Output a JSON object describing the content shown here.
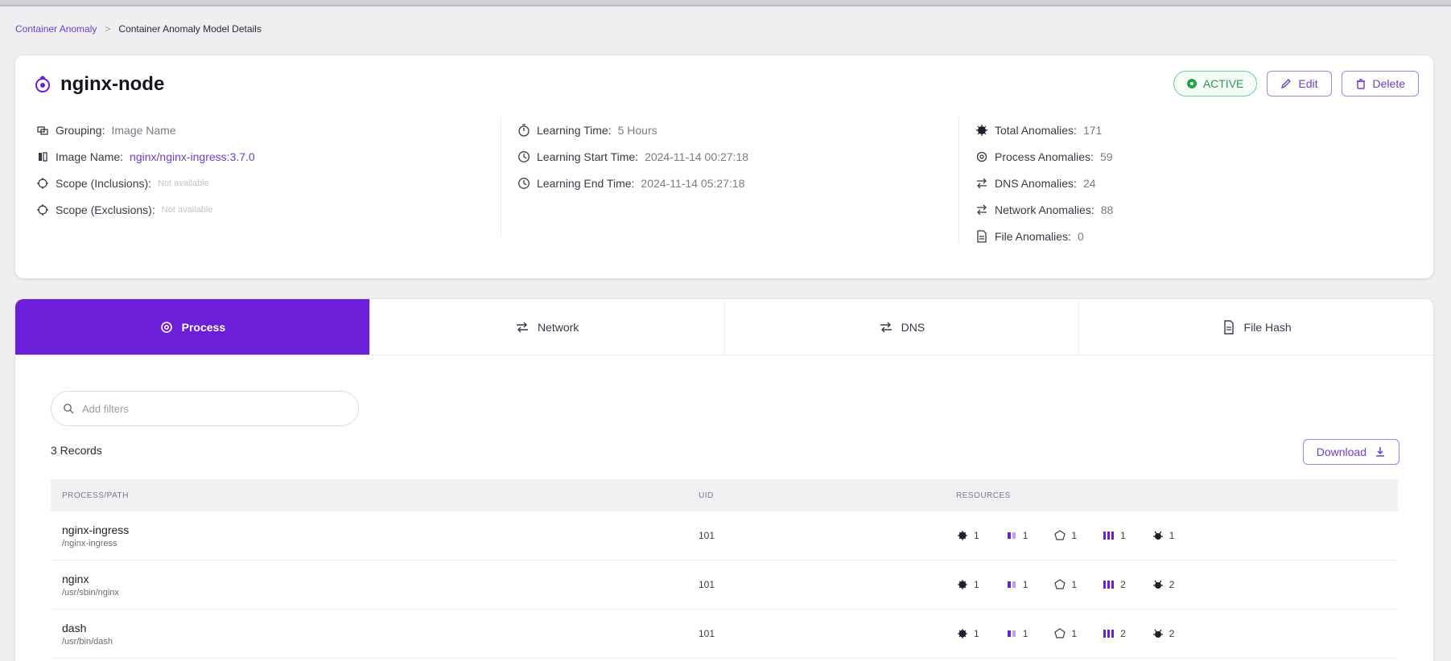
{
  "breadcrumb": {
    "parent": "Container Anomaly",
    "separator": ">",
    "current": "Container Anomaly Model Details"
  },
  "header": {
    "title": "nginx-node",
    "status": "ACTIVE",
    "edit_label": "Edit",
    "delete_label": "Delete",
    "colors": {
      "accent": "#6b1fd8",
      "active": "#27a24b"
    }
  },
  "details": {
    "grouping": {
      "label": "Grouping:",
      "value": "Image Name"
    },
    "image_name": {
      "label": "Image Name:",
      "value": "nginx/nginx-ingress:3.7.0"
    },
    "scope_inclusions": {
      "label": "Scope (Inclusions):",
      "value": "Not available"
    },
    "scope_exclusions": {
      "label": "Scope (Exclusions):",
      "value": "Not available"
    },
    "learning_time": {
      "label": "Learning Time:",
      "value": "5 Hours"
    },
    "learning_start": {
      "label": "Learning Start Time:",
      "value": "2024-11-14 00:27:18"
    },
    "learning_end": {
      "label": "Learning End Time:",
      "value": "2024-11-14 05:27:18"
    },
    "total_anomalies": {
      "label": "Total Anomalies:",
      "value": "171"
    },
    "process_anomalies": {
      "label": "Process Anomalies:",
      "value": "59"
    },
    "dns_anomalies": {
      "label": "DNS Anomalies:",
      "value": "24"
    },
    "network_anomalies": {
      "label": "Network Anomalies:",
      "value": "88"
    },
    "file_anomalies": {
      "label": "File Anomalies:",
      "value": "0"
    }
  },
  "tabs": [
    {
      "label": "Process",
      "icon": "process-icon",
      "active": true
    },
    {
      "label": "Network",
      "icon": "network-icon",
      "active": false
    },
    {
      "label": "DNS",
      "icon": "dns-icon",
      "active": false
    },
    {
      "label": "File Hash",
      "icon": "file-icon",
      "active": false
    }
  ],
  "search": {
    "placeholder": "Add filters"
  },
  "records_label": "3 Records",
  "download_label": "Download",
  "table": {
    "headers": {
      "path": "PROCESS/PATH",
      "uid": "UID",
      "resources": "RESOURCES"
    },
    "rows": [
      {
        "name": "nginx-ingress",
        "path": "/nginx-ingress",
        "uid": "101",
        "resources": [
          "1",
          "1",
          "1",
          "1",
          "1"
        ]
      },
      {
        "name": "nginx",
        "path": "/usr/sbin/nginx",
        "uid": "101",
        "resources": [
          "1",
          "1",
          "1",
          "2",
          "2"
        ]
      },
      {
        "name": "dash",
        "path": "/usr/bin/dash",
        "uid": "101",
        "resources": [
          "1",
          "1",
          "1",
          "2",
          "2"
        ]
      }
    ]
  }
}
